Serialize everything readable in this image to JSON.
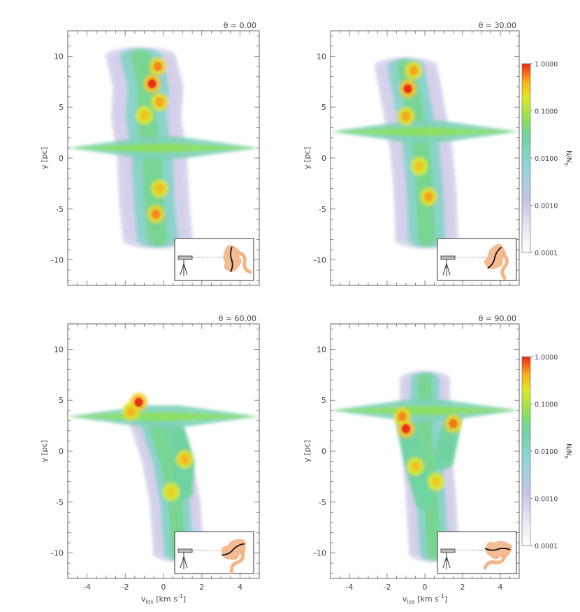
{
  "chart_data": [
    {
      "type": "heatmap",
      "theta_label": "θ =   0.00",
      "xlabel": "v_los [km s^-1]",
      "ylabel": "y [pc]",
      "xlim": [
        -5,
        5
      ],
      "ylim": [
        -12.5,
        12.5
      ],
      "x_ticks": [],
      "x_tick_labels": [],
      "y_ticks": [
        -10,
        -5,
        0,
        5,
        10
      ],
      "y_tick_labels": [
        "-10",
        "-5",
        "0",
        "5",
        "10"
      ],
      "colorbar": null,
      "filament_y": 1.0,
      "ridge": [
        [
          -1.2,
          10
        ],
        [
          -0.8,
          7
        ],
        [
          -0.9,
          4
        ],
        [
          -0.6,
          0
        ],
        [
          -0.5,
          -4
        ],
        [
          -0.3,
          -8
        ]
      ],
      "ridge_width": 1.1,
      "arms": [],
      "peaks": [
        [
          -0.6,
          7.3,
          1.0
        ],
        [
          -0.3,
          9.0,
          0.7
        ],
        [
          -0.2,
          5.5,
          0.6
        ],
        [
          -0.4,
          -5.5,
          0.7
        ],
        [
          -0.2,
          -3.0,
          0.5
        ],
        [
          -1.0,
          4.2,
          0.45
        ]
      ],
      "inset": {
        "marker_angle": 0
      }
    },
    {
      "type": "heatmap",
      "theta_label": "θ =  30.00",
      "xlabel": "v_los [km s^-1]",
      "ylabel": "y [pc]",
      "xlim": [
        -5,
        5
      ],
      "ylim": [
        -12.5,
        12.5
      ],
      "x_ticks": [],
      "x_tick_labels": [],
      "y_ticks": [
        -10,
        -5,
        0,
        5,
        10
      ],
      "y_tick_labels": [
        "-10",
        "-5",
        "0",
        "5",
        "10"
      ],
      "colorbar": {
        "label": "N/N_0",
        "tick_labels": [
          "1.0000",
          "0.1000",
          "0.0100",
          "0.0010",
          "0.0001"
        ]
      },
      "filament_y": 2.6,
      "ridge": [
        [
          -1.0,
          9
        ],
        [
          -0.6,
          5
        ],
        [
          -0.2,
          1
        ],
        [
          0.0,
          -3
        ],
        [
          0.1,
          -8
        ]
      ],
      "ridge_width": 1.0,
      "arms": [],
      "peaks": [
        [
          -0.9,
          6.8,
          1.0
        ],
        [
          -0.6,
          8.6,
          0.6
        ],
        [
          -1.0,
          4.1,
          0.6
        ],
        [
          0.2,
          -3.8,
          0.6
        ],
        [
          -0.3,
          -0.8,
          0.45
        ]
      ],
      "inset": {
        "marker_angle": 30
      }
    },
    {
      "type": "heatmap",
      "theta_label": "θ =  60.00",
      "xlabel": "v_los [km s^-1]",
      "ylabel": "y [pc]",
      "xlim": [
        -5,
        5
      ],
      "ylim": [
        -12.5,
        12.5
      ],
      "x_ticks": [
        -4,
        -2,
        0,
        2,
        4
      ],
      "x_tick_labels": [
        "-4",
        "-2",
        "0",
        "2",
        "4"
      ],
      "y_ticks": [
        -10,
        -5,
        0,
        5,
        10
      ],
      "y_tick_labels": [
        "-10",
        "-5",
        "0",
        "5",
        "10"
      ],
      "colorbar": null,
      "filament_y": 3.4,
      "ridge": [
        [
          -0.5,
          3
        ],
        [
          0.2,
          -1
        ],
        [
          0.6,
          -5
        ],
        [
          0.8,
          -10
        ]
      ],
      "ridge_width": 0.8,
      "arms": [
        [
          [
            0.6,
            2
          ],
          [
            1.1,
            -1
          ],
          [
            1.0,
            -4
          ]
        ]
      ],
      "peaks": [
        [
          -1.3,
          4.8,
          1.0
        ],
        [
          -1.7,
          3.9,
          0.55
        ],
        [
          1.1,
          -0.8,
          0.55
        ],
        [
          0.4,
          -4.0,
          0.35
        ]
      ],
      "inset": {
        "marker_angle": 60
      }
    },
    {
      "type": "heatmap",
      "theta_label": "θ =  90.00",
      "xlabel": "v_los [km s^-1]",
      "ylabel": "y [pc]",
      "xlim": [
        -5,
        5
      ],
      "ylim": [
        -12.5,
        12.5
      ],
      "x_ticks": [
        -4,
        -2,
        0,
        2,
        4
      ],
      "x_tick_labels": [
        "-4",
        "-2",
        "0",
        "2",
        "4"
      ],
      "y_ticks": [
        -10,
        -5,
        0,
        5,
        10
      ],
      "y_tick_labels": [
        "-10",
        "-5",
        "0",
        "5",
        "10"
      ],
      "colorbar": {
        "label": "N/N_0",
        "tick_labels": [
          "1.0000",
          "0.1000",
          "0.0100",
          "0.0010",
          "0.0001"
        ]
      },
      "filament_y": 4.0,
      "ridge": [
        [
          0.0,
          7
        ],
        [
          0.0,
          2
        ],
        [
          0.3,
          -4
        ],
        [
          0.5,
          -10
        ]
      ],
      "ridge_width": 0.8,
      "arms": [
        [
          [
            -1.1,
            3.5
          ],
          [
            -0.6,
            -1
          ],
          [
            0.0,
            -5
          ]
        ],
        [
          [
            1.5,
            3.5
          ],
          [
            1.0,
            -1
          ]
        ]
      ],
      "peaks": [
        [
          -1.0,
          2.2,
          1.0
        ],
        [
          -1.2,
          3.4,
          0.7
        ],
        [
          1.5,
          2.7,
          0.75
        ],
        [
          -0.5,
          -1.5,
          0.45
        ],
        [
          0.6,
          -3.0,
          0.4
        ]
      ],
      "inset": {
        "marker_angle": 90
      }
    }
  ]
}
